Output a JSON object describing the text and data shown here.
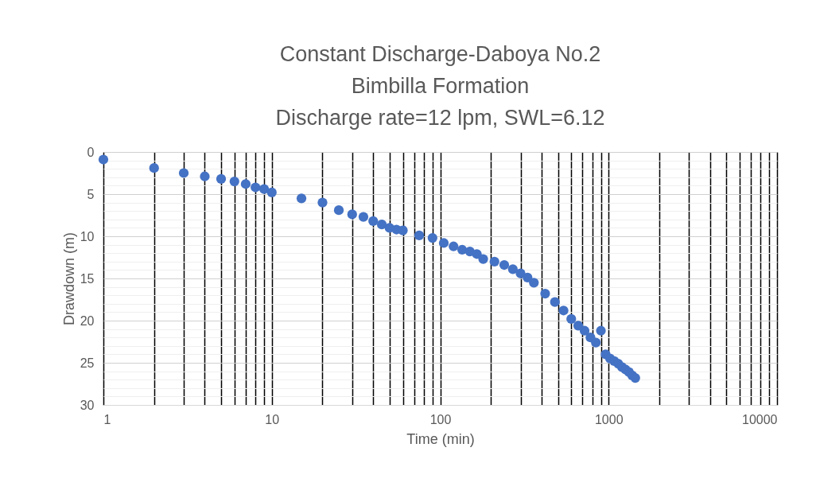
{
  "chart_data": {
    "type": "scatter",
    "title": "Constant Discharge-Daboya No.2\nBimbilla Formation\nDischarge rate=12 lpm, SWL=6.12",
    "xlabel": "Time (min)",
    "ylabel": "Drawdown (m)",
    "x": [
      1,
      2,
      3,
      4,
      5,
      6,
      7,
      8,
      9,
      10,
      15,
      20,
      25,
      30,
      35,
      40,
      45,
      50,
      55,
      60,
      75,
      90,
      105,
      120,
      135,
      150,
      165,
      180,
      210,
      240,
      270,
      300,
      330,
      360,
      420,
      480,
      540,
      600,
      660,
      720,
      780,
      840,
      900,
      960,
      1020,
      1080,
      1140,
      1200,
      1260,
      1320,
      1380,
      1440
    ],
    "series": [
      {
        "color": "#4472c4",
        "values": [
          0.9,
          1.9,
          2.5,
          2.9,
          3.2,
          3.5,
          3.8,
          4.2,
          4.4,
          4.8,
          5.5,
          6.0,
          6.9,
          7.4,
          7.7,
          8.2,
          8.6,
          9.0,
          9.2,
          9.3,
          9.9,
          10.2,
          10.8,
          11.2,
          11.6,
          11.8,
          12.1,
          12.7,
          13.0,
          13.4,
          13.9,
          14.4,
          14.9,
          15.5,
          16.8,
          17.8,
          18.8,
          19.8,
          20.6,
          21.2,
          22.0,
          22.6,
          21.2,
          24.0,
          24.5,
          24.8,
          25.1,
          25.5,
          25.8,
          26.1,
          26.5,
          26.8
        ]
      }
    ],
    "log": "x",
    "marker": "circle",
    "grid": true,
    "legend": false,
    "xlim": [
      1,
      10000
    ],
    "xticks": [
      1,
      {
        "value": 2,
        "label": null
      },
      {
        "value": 3,
        "label": null
      },
      {
        "value": 4,
        "label": null
      },
      {
        "value": 5,
        "label": null
      },
      {
        "value": 6,
        "label": null
      },
      {
        "value": 7,
        "label": null
      },
      {
        "value": 8,
        "label": null
      },
      {
        "value": 9,
        "label": null
      },
      10,
      {
        "value": 20,
        "label": null
      },
      {
        "value": 30,
        "label": null
      },
      {
        "value": 40,
        "label": null
      },
      {
        "value": 50,
        "label": null
      },
      {
        "value": 60,
        "label": null
      },
      {
        "value": 70,
        "label": null
      },
      {
        "value": 80,
        "label": null
      },
      {
        "value": 90,
        "label": null
      },
      100,
      {
        "value": 200,
        "label": null
      },
      {
        "value": 300,
        "label": null
      },
      {
        "value": 400,
        "label": null
      },
      {
        "value": 500,
        "label": null
      },
      {
        "value": 600,
        "label": null
      },
      {
        "value": 700,
        "label": null
      },
      {
        "value": 800,
        "label": null
      },
      {
        "value": 900,
        "label": null
      },
      1000,
      {
        "value": 2000,
        "label": null
      },
      {
        "value": 3000,
        "label": null
      },
      {
        "value": 4000,
        "label": null
      },
      {
        "value": 5000,
        "label": null
      },
      {
        "value": 6000,
        "label": null
      },
      {
        "value": 7000,
        "label": null
      },
      {
        "value": 8000,
        "label": null
      },
      {
        "value": 9000,
        "label": null
      },
      10000
    ],
    "ylim": [
      30,
      0
    ],
    "yticks": [
      0,
      {
        "value": 1,
        "label": null
      },
      {
        "value": 2,
        "label": null
      },
      {
        "value": 3,
        "label": null
      },
      {
        "value": 4,
        "label": null
      },
      5,
      {
        "value": 6,
        "label": null
      },
      {
        "value": 7,
        "label": null
      },
      {
        "value": 8,
        "label": null
      },
      {
        "value": 9,
        "label": null
      },
      10,
      {
        "value": 11,
        "label": null
      },
      {
        "value": 12,
        "label": null
      },
      {
        "value": 13,
        "label": null
      },
      {
        "value": 14,
        "label": null
      },
      15,
      {
        "value": 16,
        "label": null
      },
      {
        "value": 17,
        "label": null
      },
      {
        "value": 18,
        "label": null
      },
      {
        "value": 19,
        "label": null
      },
      20,
      {
        "value": 21,
        "label": null
      },
      {
        "value": 22,
        "label": null
      },
      {
        "value": 23,
        "label": null
      },
      {
        "value": 24,
        "label": null
      },
      25,
      {
        "value": 26,
        "label": null
      },
      {
        "value": 27,
        "label": null
      },
      {
        "value": 28,
        "label": null
      },
      {
        "value": 29,
        "label": null
      },
      30
    ]
  }
}
